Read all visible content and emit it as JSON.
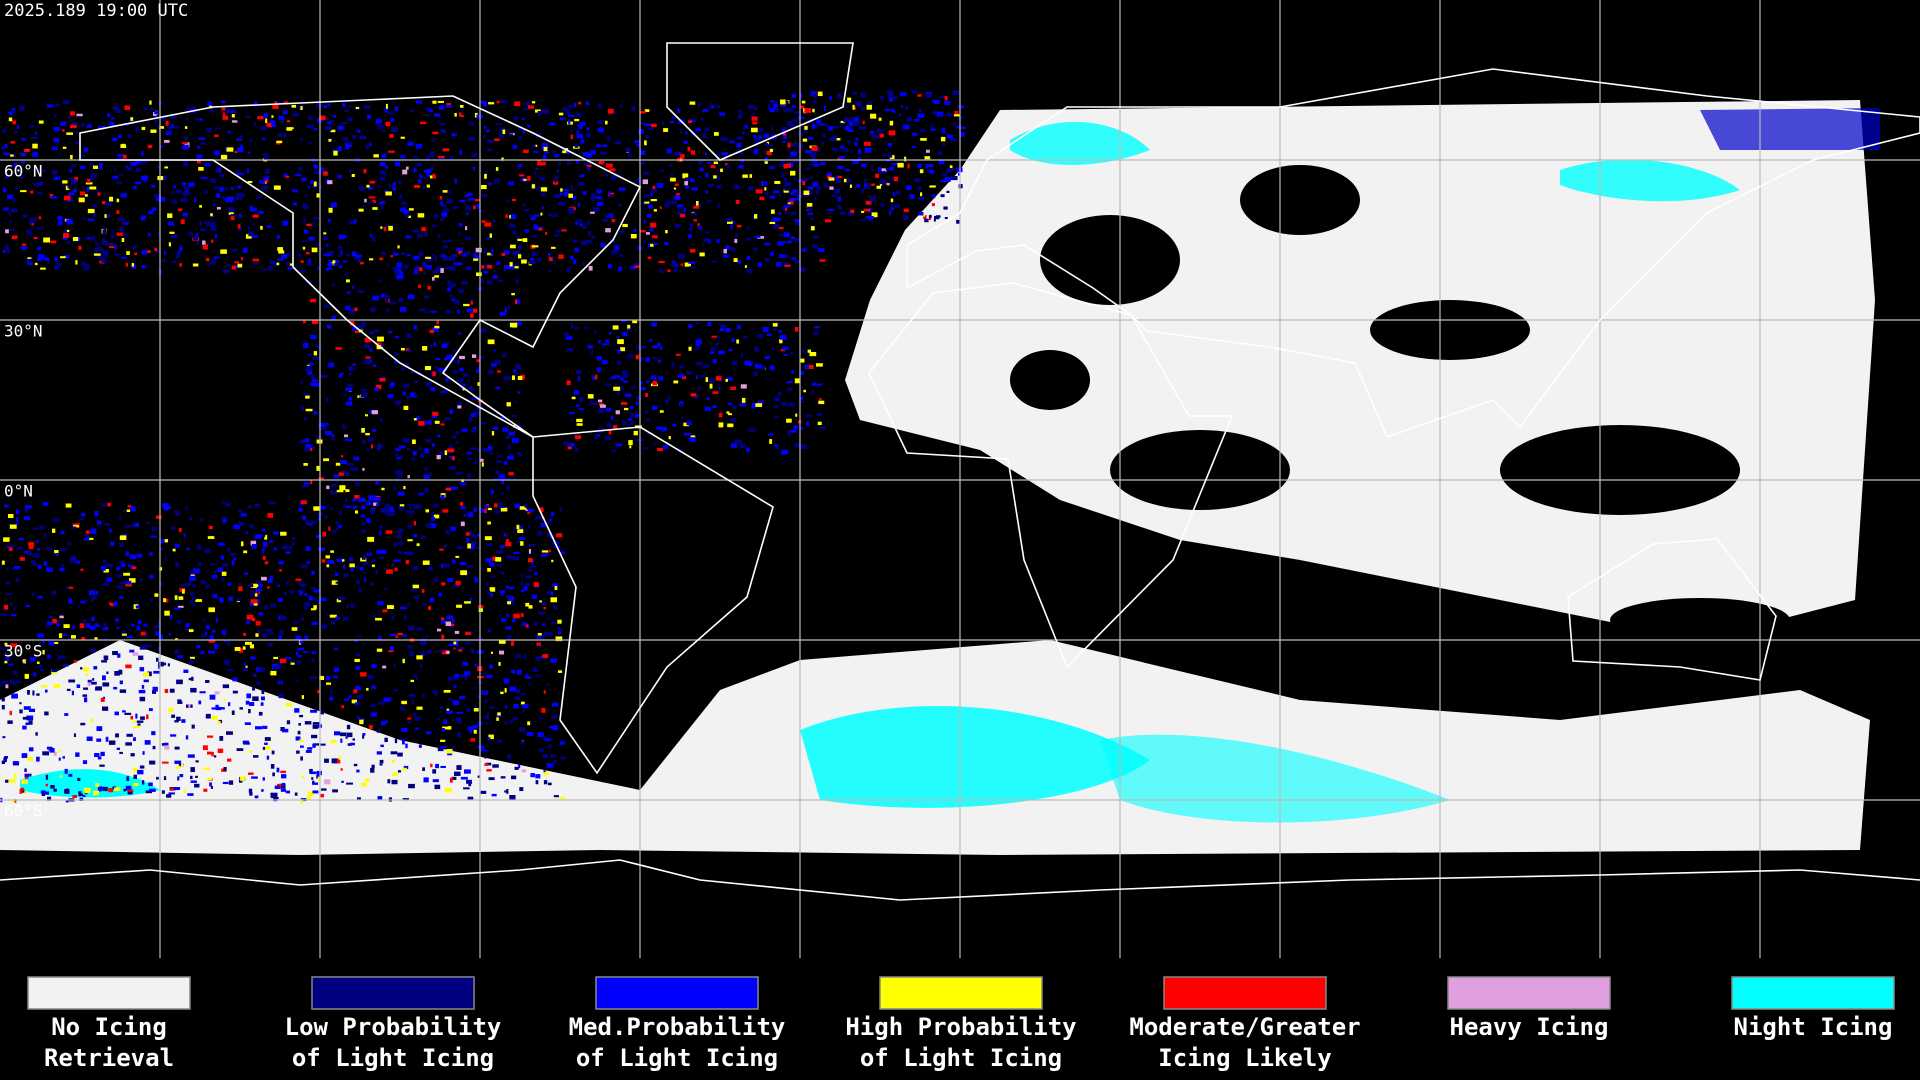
{
  "header": {
    "timestamp": "2025.189 19:00 UTC"
  },
  "map": {
    "latitude_labels": [
      "60°N",
      "30°N",
      "0°N",
      "30°S",
      "60°S"
    ]
  },
  "legend": {
    "items": [
      {
        "label_lines": [
          "No Icing",
          "Retrieval"
        ],
        "color": "#f2f2f2"
      },
      {
        "label_lines": [
          "Low Probability",
          "of Light Icing"
        ],
        "color": "#000080"
      },
      {
        "label_lines": [
          "Med.Probability",
          "of Light Icing"
        ],
        "color": "#0000ff"
      },
      {
        "label_lines": [
          "High Probability",
          "of Light Icing"
        ],
        "color": "#ffff00"
      },
      {
        "label_lines": [
          "Moderate/Greater",
          "Icing Likely"
        ],
        "color": "#ff0000"
      },
      {
        "label_lines": [
          "Heavy Icing"
        ],
        "color": "#e0a0e0"
      },
      {
        "label_lines": [
          "Night Icing"
        ],
        "color": "#00ffff"
      }
    ]
  }
}
